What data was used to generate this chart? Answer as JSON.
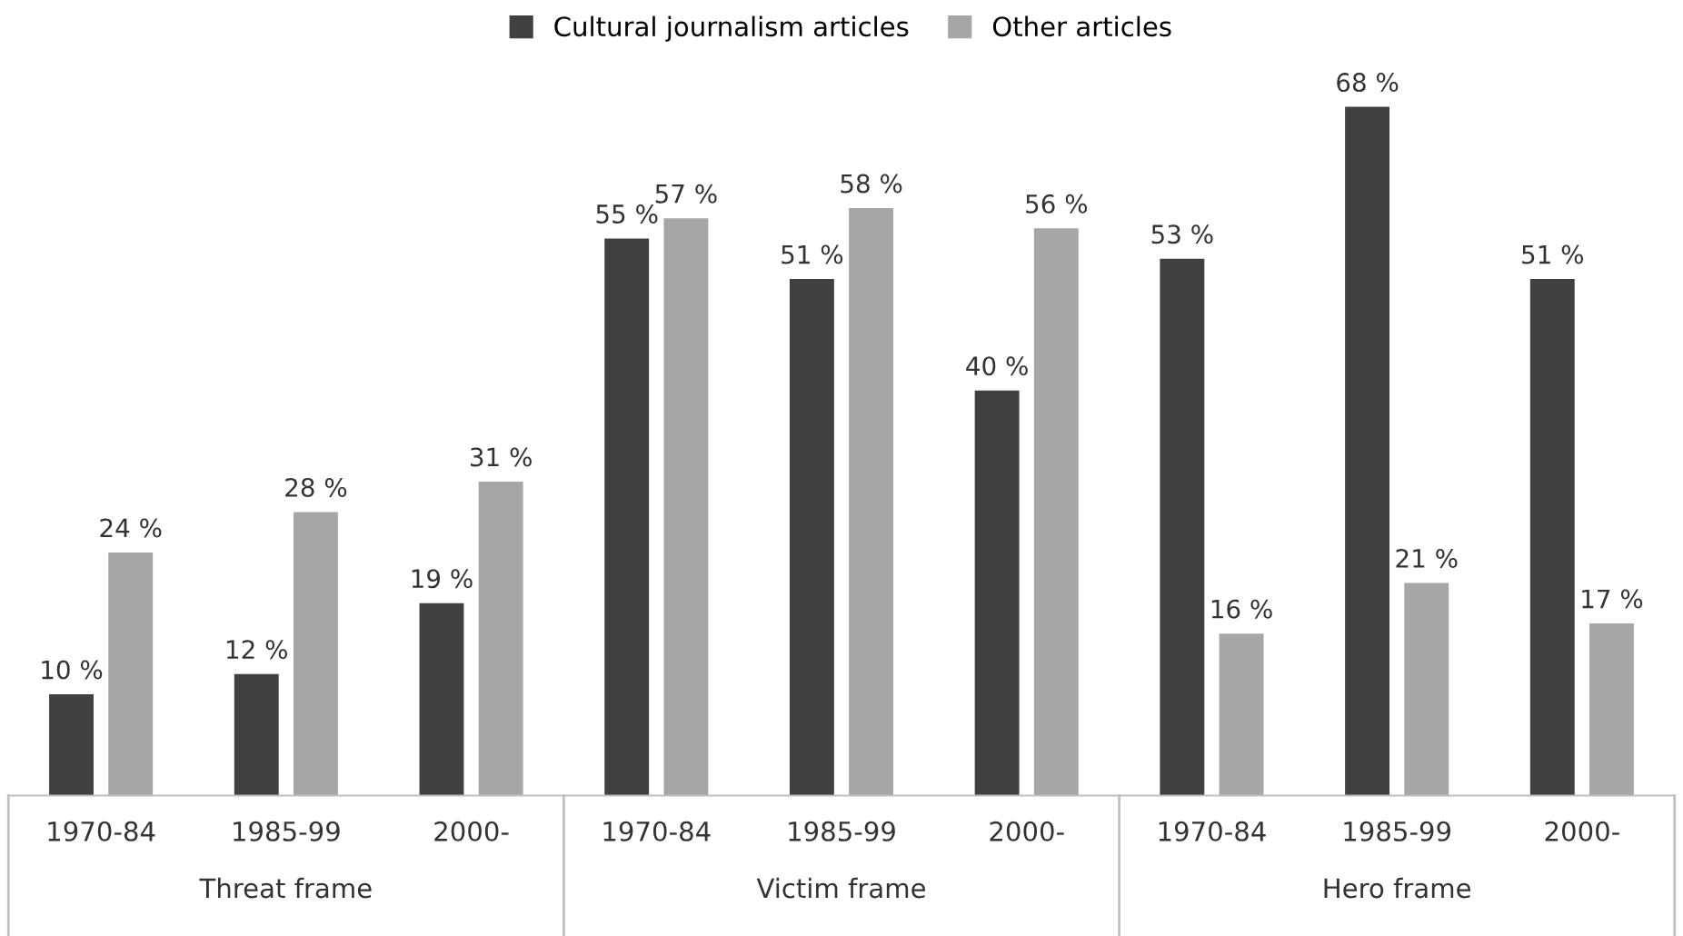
{
  "chart_data": {
    "type": "bar",
    "categories": [
      "1970-84",
      "1985-99",
      "2000-",
      "1970-84",
      "1985-99",
      "2000-",
      "1970-84",
      "1985-99",
      "2000-"
    ],
    "series": [
      {
        "name": "Cultural journalism articles",
        "color": "#404040",
        "values": [
          10,
          12,
          19,
          55,
          51,
          40,
          53,
          68,
          51
        ],
        "value_labels": [
          "10 %",
          "12 %",
          "19 %",
          "55 %",
          "51 %",
          "40 %",
          "53 %",
          "68 %",
          "51 %"
        ]
      },
      {
        "name": "Other articles",
        "color": "#a6a6a6",
        "values": [
          24,
          28,
          31,
          57,
          58,
          56,
          16,
          21,
          17
        ],
        "value_labels": [
          "24 %",
          "28 %",
          "31 %",
          "57 %",
          "58 %",
          "56 %",
          "16 %",
          "21 %",
          "17 %"
        ]
      }
    ],
    "annotations": [
      "Threat frame",
      "Victim frame",
      "Hero frame"
    ],
    "legend": "top",
    "grid": false
  }
}
